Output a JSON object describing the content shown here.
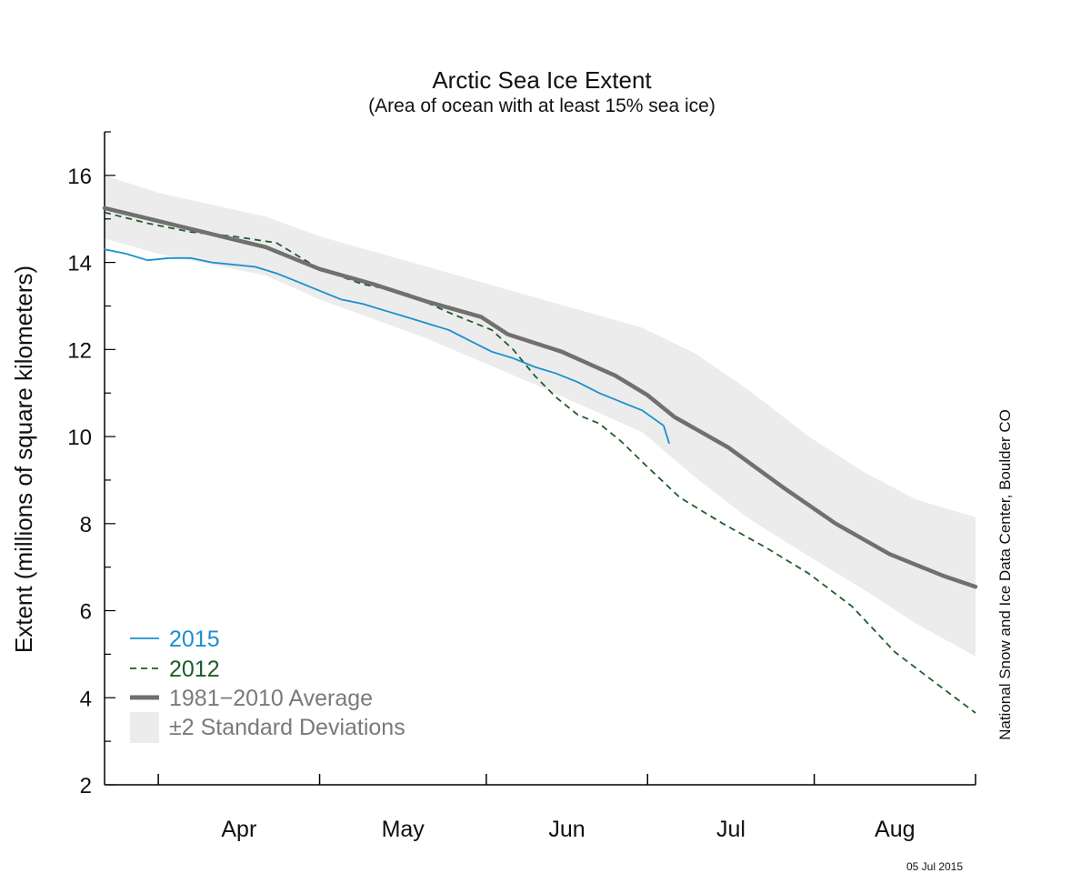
{
  "chart_data": {
    "type": "line",
    "title": "Arctic Sea Ice Extent",
    "subtitle": "(Area of ocean with at least 15% sea ice)",
    "ylabel": "Extent (millions of square kilometers)",
    "xlabel": "",
    "ylim": [
      2,
      17
    ],
    "yticks": [
      2,
      4,
      6,
      8,
      10,
      12,
      14,
      16
    ],
    "xlim": [
      "2015-03-22",
      "2015-08-31"
    ],
    "months": [
      {
        "label": "Apr",
        "start": "2015-04-01",
        "end": "2015-05-01"
      },
      {
        "label": "May",
        "start": "2015-05-01",
        "end": "2015-06-01"
      },
      {
        "label": "Jun",
        "start": "2015-06-01",
        "end": "2015-07-01"
      },
      {
        "label": "Jul",
        "start": "2015-07-01",
        "end": "2015-08-01"
      },
      {
        "label": "Aug",
        "start": "2015-08-01",
        "end": "2015-08-31"
      }
    ],
    "grid": false,
    "legend_position": "bottom-left",
    "series": [
      {
        "name": "2015",
        "color": "#1a8fd0",
        "style": "solid",
        "points": [
          [
            "2015-03-22",
            14.3
          ],
          [
            "2015-03-26",
            14.2
          ],
          [
            "2015-03-30",
            14.05
          ],
          [
            "2015-04-03",
            14.1
          ],
          [
            "2015-04-07",
            14.1
          ],
          [
            "2015-04-11",
            14.0
          ],
          [
            "2015-04-15",
            13.95
          ],
          [
            "2015-04-19",
            13.9
          ],
          [
            "2015-04-23",
            13.75
          ],
          [
            "2015-04-27",
            13.55
          ],
          [
            "2015-05-01",
            13.35
          ],
          [
            "2015-05-05",
            13.15
          ],
          [
            "2015-05-09",
            13.05
          ],
          [
            "2015-05-13",
            12.9
          ],
          [
            "2015-05-17",
            12.75
          ],
          [
            "2015-05-21",
            12.6
          ],
          [
            "2015-05-25",
            12.45
          ],
          [
            "2015-05-29",
            12.2
          ],
          [
            "2015-06-02",
            11.95
          ],
          [
            "2015-06-06",
            11.8
          ],
          [
            "2015-06-10",
            11.6
          ],
          [
            "2015-06-14",
            11.45
          ],
          [
            "2015-06-18",
            11.25
          ],
          [
            "2015-06-22",
            11.0
          ],
          [
            "2015-06-26",
            10.8
          ],
          [
            "2015-06-30",
            10.6
          ],
          [
            "2015-07-04",
            10.25
          ],
          [
            "2015-07-05",
            9.85
          ]
        ]
      },
      {
        "name": "2012",
        "color": "#1f5c2a",
        "style": "dashed",
        "points": [
          [
            "2015-03-22",
            15.15
          ],
          [
            "2015-03-30",
            14.9
          ],
          [
            "2015-04-07",
            14.7
          ],
          [
            "2015-04-15",
            14.6
          ],
          [
            "2015-04-23",
            14.45
          ],
          [
            "2015-05-01",
            13.85
          ],
          [
            "2015-05-09",
            13.5
          ],
          [
            "2015-05-17",
            13.3
          ],
          [
            "2015-05-25",
            12.85
          ],
          [
            "2015-06-02",
            12.45
          ],
          [
            "2015-06-06",
            12.0
          ],
          [
            "2015-06-10",
            11.4
          ],
          [
            "2015-06-14",
            10.9
          ],
          [
            "2015-06-18",
            10.5
          ],
          [
            "2015-06-22",
            10.3
          ],
          [
            "2015-06-26",
            9.9
          ],
          [
            "2015-07-01",
            9.3
          ],
          [
            "2015-07-07",
            8.6
          ],
          [
            "2015-07-15",
            8.0
          ],
          [
            "2015-07-23",
            7.45
          ],
          [
            "2015-07-31",
            6.85
          ],
          [
            "2015-08-08",
            6.1
          ],
          [
            "2015-08-16",
            5.05
          ],
          [
            "2015-08-24",
            4.3
          ],
          [
            "2015-08-31",
            3.65
          ]
        ]
      },
      {
        "name": "1981−2010 Average",
        "color": "#707070",
        "style": "thick",
        "points": [
          [
            "2015-03-22",
            15.25
          ],
          [
            "2015-04-01",
            14.95
          ],
          [
            "2015-04-11",
            14.65
          ],
          [
            "2015-04-21",
            14.35
          ],
          [
            "2015-05-01",
            13.85
          ],
          [
            "2015-05-11",
            13.5
          ],
          [
            "2015-05-21",
            13.1
          ],
          [
            "2015-05-31",
            12.75
          ],
          [
            "2015-06-05",
            12.35
          ],
          [
            "2015-06-15",
            11.95
          ],
          [
            "2015-06-25",
            11.4
          ],
          [
            "2015-07-01",
            10.95
          ],
          [
            "2015-07-06",
            10.45
          ],
          [
            "2015-07-16",
            9.75
          ],
          [
            "2015-07-26",
            8.85
          ],
          [
            "2015-08-05",
            8.0
          ],
          [
            "2015-08-15",
            7.3
          ],
          [
            "2015-08-25",
            6.8
          ],
          [
            "2015-08-31",
            6.55
          ]
        ]
      }
    ],
    "band": {
      "name": "±2 Standard Deviations",
      "color": "#ececec",
      "upper": [
        [
          "2015-03-22",
          16.0
        ],
        [
          "2015-04-01",
          15.6
        ],
        [
          "2015-04-21",
          15.05
        ],
        [
          "2015-05-01",
          14.6
        ],
        [
          "2015-05-21",
          13.9
        ],
        [
          "2015-06-10",
          13.2
        ],
        [
          "2015-06-30",
          12.5
        ],
        [
          "2015-07-10",
          11.9
        ],
        [
          "2015-07-20",
          11.05
        ],
        [
          "2015-07-31",
          10.0
        ],
        [
          "2015-08-10",
          9.2
        ],
        [
          "2015-08-20",
          8.55
        ],
        [
          "2015-08-31",
          8.15
        ]
      ],
      "lower": [
        [
          "2015-03-22",
          14.55
        ],
        [
          "2015-04-01",
          14.2
        ],
        [
          "2015-04-21",
          13.7
        ],
        [
          "2015-05-01",
          13.15
        ],
        [
          "2015-05-21",
          12.25
        ],
        [
          "2015-06-10",
          11.2
        ],
        [
          "2015-06-30",
          10.1
        ],
        [
          "2015-07-10",
          9.05
        ],
        [
          "2015-07-20",
          8.1
        ],
        [
          "2015-07-31",
          7.25
        ],
        [
          "2015-08-10",
          6.5
        ],
        [
          "2015-08-20",
          5.7
        ],
        [
          "2015-08-31",
          4.95
        ]
      ]
    },
    "legend": [
      "2015",
      "2012",
      "1981−2010 Average",
      "±2 Standard Deviations"
    ],
    "credit": "National Snow and Ice Data Center, Boulder CO",
    "date_stamp": "05 Jul 2015"
  }
}
